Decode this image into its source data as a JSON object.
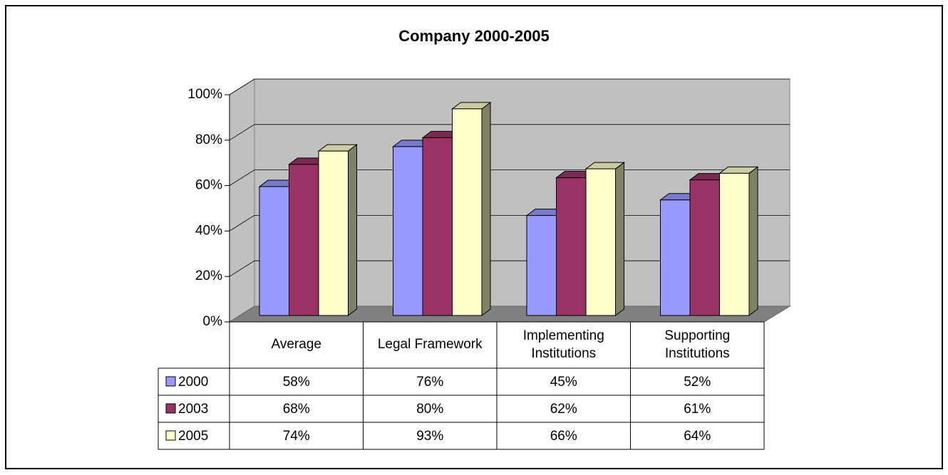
{
  "chart_data": {
    "type": "bar3d",
    "title": "Company 2000-2005",
    "categories": [
      "Average",
      "Legal Framework",
      "Implementing Institutions",
      "Supporting Institutions"
    ],
    "series": [
      {
        "name": "2000",
        "color": "#9999ff",
        "values": [
          58,
          76,
          45,
          52
        ],
        "value_labels": [
          "58%",
          "76%",
          "45%",
          "52%"
        ]
      },
      {
        "name": "2003",
        "color": "#993366",
        "values": [
          68,
          80,
          62,
          61
        ],
        "value_labels": [
          "68%",
          "80%",
          "62%",
          "61%"
        ]
      },
      {
        "name": "2005",
        "color": "#ffffcc",
        "values": [
          74,
          93,
          66,
          64
        ],
        "value_labels": [
          "74%",
          "93%",
          "66%",
          "64%"
        ]
      }
    ],
    "ylim": [
      0,
      100
    ],
    "yticks": [
      {
        "value": 0,
        "label": "0%"
      },
      {
        "value": 20,
        "label": "20%"
      },
      {
        "value": 40,
        "label": "40%"
      },
      {
        "value": 60,
        "label": "60%"
      },
      {
        "value": 80,
        "label": "80%"
      },
      {
        "value": 100,
        "label": "100%"
      }
    ],
    "grid": true
  }
}
